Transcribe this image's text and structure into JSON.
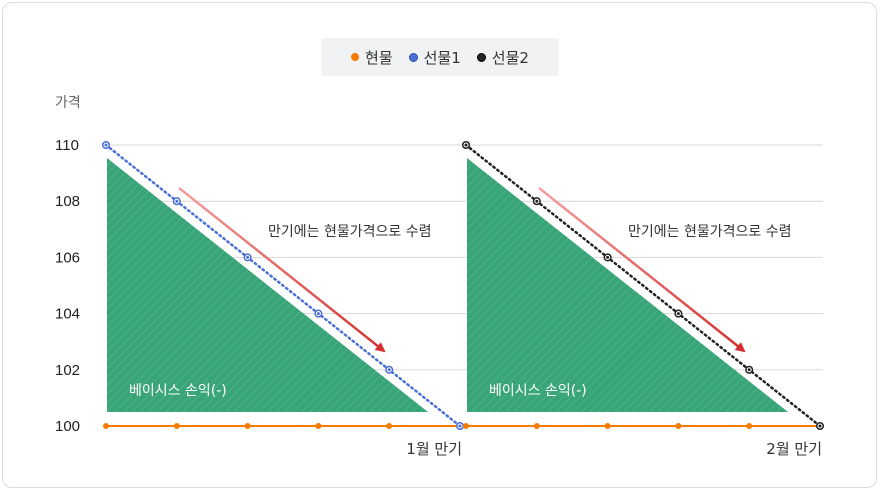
{
  "legend": [
    {
      "label": "현물",
      "color": "#f57c00"
    },
    {
      "label": "선물1",
      "color": "#4a6fd6"
    },
    {
      "label": "선물2",
      "color": "#222222"
    }
  ],
  "chart_data": {
    "type": "line",
    "ylabel": "가격",
    "yticks": [
      "110",
      "108",
      "106",
      "104",
      "102",
      "100"
    ],
    "ylim": [
      100,
      110
    ],
    "grid": true,
    "legend_position": "top-center",
    "panels": [
      {
        "expiry_label": "1월 만기",
        "annotation": "만기에는 현물가격으로 수렴",
        "area_label": "베이시스 손익(-)",
        "series": [
          {
            "name": "현물",
            "color": "#f57c00",
            "values": [
              100,
              100,
              100,
              100,
              100,
              100
            ]
          },
          {
            "name": "선물1",
            "color": "#4a6fd6",
            "values": [
              110,
              108,
              106,
              104,
              102,
              100
            ]
          }
        ]
      },
      {
        "expiry_label": "2월 만기",
        "annotation": "만기에는 현물가격으로 수렴",
        "area_label": "베이시스 손익(-)",
        "series": [
          {
            "name": "현물",
            "color": "#f57c00",
            "values": [
              100,
              100,
              100,
              100,
              100,
              100
            ]
          },
          {
            "name": "선물2",
            "color": "#222222",
            "values": [
              110,
              108,
              106,
              104,
              102,
              100
            ]
          }
        ]
      }
    ]
  }
}
